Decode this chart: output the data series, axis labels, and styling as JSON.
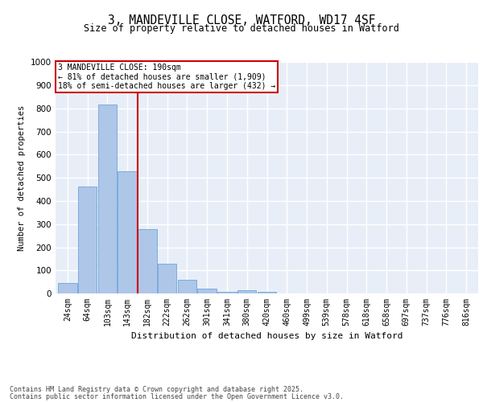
{
  "title": "3, MANDEVILLE CLOSE, WATFORD, WD17 4SF",
  "subtitle": "Size of property relative to detached houses in Watford",
  "xlabel": "Distribution of detached houses by size in Watford",
  "ylabel": "Number of detached properties",
  "bar_labels": [
    "24sqm",
    "64sqm",
    "103sqm",
    "143sqm",
    "182sqm",
    "222sqm",
    "262sqm",
    "301sqm",
    "341sqm",
    "380sqm",
    "420sqm",
    "460sqm",
    "499sqm",
    "539sqm",
    "578sqm",
    "618sqm",
    "658sqm",
    "697sqm",
    "737sqm",
    "776sqm",
    "816sqm"
  ],
  "bar_values": [
    46,
    462,
    818,
    527,
    280,
    127,
    59,
    22,
    8,
    13,
    6,
    0,
    0,
    0,
    0,
    0,
    0,
    0,
    0,
    0,
    0
  ],
  "bar_color": "#aec6e8",
  "bar_edge_color": "#5b9bd5",
  "background_color": "#e8eef8",
  "grid_color": "#ffffff",
  "property_line_color": "#cc0000",
  "annotation_text": "3 MANDEVILLE CLOSE: 190sqm\n← 81% of detached houses are smaller (1,909)\n18% of semi-detached houses are larger (432) →",
  "annotation_box_color": "#cc0000",
  "ylim": [
    0,
    1000
  ],
  "yticks": [
    0,
    100,
    200,
    300,
    400,
    500,
    600,
    700,
    800,
    900,
    1000
  ],
  "footer_line1": "Contains HM Land Registry data © Crown copyright and database right 2025.",
  "footer_line2": "Contains public sector information licensed under the Open Government Licence v3.0."
}
